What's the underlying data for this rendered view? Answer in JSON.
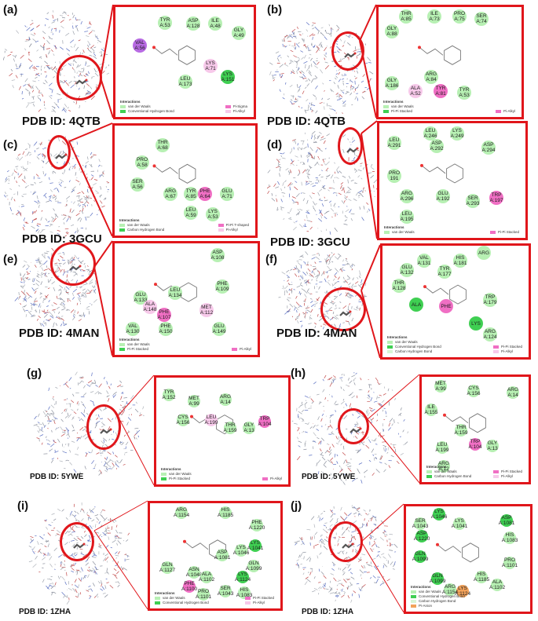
{
  "panels": [
    {
      "letter": "(a)",
      "pdb": "PDB ID: 4QTB",
      "residues": [
        {
          "n": "TYR",
          "id": "A:53",
          "c": "green"
        },
        {
          "n": "ASP",
          "id": "A:128",
          "c": "green"
        },
        {
          "n": "ILE",
          "id": "A:48",
          "c": "green"
        },
        {
          "n": "GLY",
          "id": "A:49",
          "c": "green"
        },
        {
          "n": "VAL",
          "id": "A:56",
          "c": "purple"
        },
        {
          "n": "LYS",
          "id": "A:151",
          "c": "strong"
        },
        {
          "n": "LYS",
          "id": "A:71",
          "c": "lpink"
        },
        {
          "n": "LEU",
          "id": "A:173",
          "c": "green"
        }
      ],
      "legend_title": "Interactions",
      "legend": [
        "van der Waals",
        "Conventional Hydrogen Bond"
      ],
      "legend_right": [
        "Pi-Sigma",
        "Pi-Alkyl"
      ]
    },
    {
      "letter": "(b)",
      "pdb": "PDB ID: 4QTB",
      "residues": [
        {
          "n": "THR",
          "id": "A:85",
          "c": "green"
        },
        {
          "n": "ILE",
          "id": "A:73",
          "c": "green"
        },
        {
          "n": "PRO",
          "id": "A:75",
          "c": "green"
        },
        {
          "n": "SER",
          "id": "A:74",
          "c": "green"
        },
        {
          "n": "GLY",
          "id": "A:88",
          "c": "green"
        },
        {
          "n": "GLY",
          "id": "A:186",
          "c": "green"
        },
        {
          "n": "ARG",
          "id": "A:84",
          "c": "green"
        },
        {
          "n": "ALA",
          "id": "A:52",
          "c": "lpink"
        },
        {
          "n": "TYR",
          "id": "A:81",
          "c": "pink"
        },
        {
          "n": "TYR",
          "id": "A:53",
          "c": "green"
        }
      ],
      "legend_title": "Interactions",
      "legend": [
        "van der Waals",
        "Pi-Pi Stacked"
      ],
      "legend_right": [
        "Pi-Alkyl"
      ]
    },
    {
      "letter": "(c)",
      "pdb": "PDB ID: 3GCU",
      "residues": [
        {
          "n": "THR",
          "id": "A:68",
          "c": "green"
        },
        {
          "n": "PRO",
          "id": "A:58",
          "c": "green"
        },
        {
          "n": "SER",
          "id": "A:56",
          "c": "green"
        },
        {
          "n": "ARG",
          "id": "A:67",
          "c": "green"
        },
        {
          "n": "TYR",
          "id": "A:85",
          "c": "green"
        },
        {
          "n": "PHE",
          "id": "A:64",
          "c": "pink"
        },
        {
          "n": "GLU",
          "id": "A:71",
          "c": "green"
        },
        {
          "n": "LEU",
          "id": "A:59",
          "c": "green"
        },
        {
          "n": "LYS",
          "id": "A:53",
          "c": "green"
        }
      ],
      "legend_title": "Interactions",
      "legend": [
        "van der Waals",
        "Carbon Hydrogen Bond"
      ],
      "legend_right": [
        "Pi-Pi T-shaped",
        "Pi-Alkyl"
      ]
    },
    {
      "letter": "(d)",
      "pdb": "PDB ID: 3GCU",
      "residues": [
        {
          "n": "LEU",
          "id": "A:246",
          "c": "green"
        },
        {
          "n": "LYS",
          "id": "A:249",
          "c": "green"
        },
        {
          "n": "LEU",
          "id": "A:291",
          "c": "green"
        },
        {
          "n": "ASP",
          "id": "A:292",
          "c": "green"
        },
        {
          "n": "ASP",
          "id": "A:294",
          "c": "green"
        },
        {
          "n": "PRO",
          "id": "191",
          "c": "green"
        },
        {
          "n": "ARG",
          "id": "A:296",
          "c": "green"
        },
        {
          "n": "GLU",
          "id": "A:192",
          "c": "green"
        },
        {
          "n": "SER",
          "id": "A:293",
          "c": "green"
        },
        {
          "n": "TRP",
          "id": "A:197",
          "c": "pink"
        },
        {
          "n": "LEU",
          "id": "A:195",
          "c": "green"
        }
      ],
      "legend_title": "Interactions",
      "legend": [
        "van der Waals"
      ],
      "legend_right": [
        "Pi-Pi Stacked"
      ]
    },
    {
      "letter": "(e)",
      "pdb": "PDB ID: 4MAN",
      "residues": [
        {
          "n": "ASP",
          "id": "A:108",
          "c": "green"
        },
        {
          "n": "PHE",
          "id": "A:109",
          "c": "green"
        },
        {
          "n": "GLU",
          "id": "A:133",
          "c": "green"
        },
        {
          "n": "LEU",
          "id": "A:134",
          "c": "green"
        },
        {
          "n": "ALA",
          "id": "A:148",
          "c": "lpink"
        },
        {
          "n": "PHE",
          "id": "A:107",
          "c": "pink"
        },
        {
          "n": "MET",
          "id": "A:112",
          "c": "lpink"
        },
        {
          "n": "VAL",
          "id": "A:130",
          "c": "green"
        },
        {
          "n": "PHE",
          "id": "A:150",
          "c": "green"
        },
        {
          "n": "GLU",
          "id": "A:149",
          "c": "green"
        }
      ],
      "legend_title": "Interactions",
      "legend": [
        "van der Waals",
        "Pi-Pi Stacked"
      ],
      "legend_right": [
        "Pi-Alkyl"
      ]
    },
    {
      "letter": "(f)",
      "pdb": "PDB ID: 4MAN",
      "residues": [
        {
          "n": "ARG",
          "id": "",
          "c": "green"
        },
        {
          "n": "VAL",
          "id": "A:131",
          "c": "green"
        },
        {
          "n": "HIS",
          "id": "A:181",
          "c": "green"
        },
        {
          "n": "GLU",
          "id": "A:132",
          "c": "green"
        },
        {
          "n": "TYR",
          "id": "A:177",
          "c": "green"
        },
        {
          "n": "THR",
          "id": "A:128",
          "c": "green"
        },
        {
          "n": "ALA",
          "id": "",
          "c": "strong"
        },
        {
          "n": "PHE",
          "id": "",
          "c": "pink"
        },
        {
          "n": "TRP",
          "id": "A:179",
          "c": "green"
        },
        {
          "n": "LYS",
          "id": "",
          "c": "strong"
        },
        {
          "n": "ARG",
          "id": "A:124",
          "c": "green"
        }
      ],
      "legend_title": "Interactions",
      "legend": [
        "van der Waals",
        "Conventional Hydrogen Bond",
        "Carbon Hydrogen Bond"
      ],
      "legend_right": [
        "Pi-Pi Stacked",
        "Pi-Alkyl"
      ]
    },
    {
      "letter": "(g)",
      "pdb": "PDB ID: 5YWE",
      "residues": [
        {
          "n": "TYR",
          "id": "A:152",
          "c": "green"
        },
        {
          "n": "MET",
          "id": "A:99",
          "c": "green"
        },
        {
          "n": "ARG",
          "id": "A:14",
          "c": "green"
        },
        {
          "n": "CYS",
          "id": "A:156",
          "c": "green"
        },
        {
          "n": "LEU",
          "id": "A:199",
          "c": "lpink"
        },
        {
          "n": "THR",
          "id": "A:159",
          "c": "green"
        },
        {
          "n": "GLY",
          "id": "A:13",
          "c": "green"
        },
        {
          "n": "TRP",
          "id": "A:104",
          "c": "pink"
        }
      ],
      "legend_title": "Interactions",
      "legend": [
        "van der Waals",
        "Pi-Pi Stacked"
      ],
      "legend_right": [
        "Pi-Alkyl"
      ]
    },
    {
      "letter": "(h)",
      "pdb": "PDB ID: 5YWE",
      "residues": [
        {
          "n": "MET",
          "id": "A:99",
          "c": "green"
        },
        {
          "n": "CYS",
          "id": "A:156",
          "c": "green"
        },
        {
          "n": "ARG",
          "id": "A:14",
          "c": "green"
        },
        {
          "n": "ILE",
          "id": "A:155",
          "c": "green"
        },
        {
          "n": "THR",
          "id": "A:159",
          "c": "green"
        },
        {
          "n": "LEU",
          "id": "A:199",
          "c": "green"
        },
        {
          "n": "TRP",
          "id": "A:104",
          "c": "pink"
        },
        {
          "n": "GLY",
          "id": "A:13",
          "c": "green"
        },
        {
          "n": "ARG",
          "id": "A:12",
          "c": "green"
        }
      ],
      "legend_title": "Interactions",
      "legend": [
        "van der Waals",
        "Carbon Hydrogen Bond"
      ],
      "legend_right": [
        "Pi-Pi Stacked",
        "Pi-Alkyl"
      ]
    },
    {
      "letter": "(i)",
      "pdb": "PDB ID: 1ZHA",
      "residues": [
        {
          "n": "ARG",
          "id": "A:1154",
          "c": "green"
        },
        {
          "n": "HIS",
          "id": "A:1185",
          "c": "green"
        },
        {
          "n": "PHE",
          "id": "A:1220",
          "c": "green"
        },
        {
          "n": "LYS",
          "id": "A:1041",
          "c": "strong"
        },
        {
          "n": "LYS",
          "id": "A:1046",
          "c": "green"
        },
        {
          "n": "ASP",
          "id": "A:1081",
          "c": "green"
        },
        {
          "n": "GLN",
          "id": "A:1099",
          "c": "green"
        },
        {
          "n": "GLN",
          "id": "A:1127",
          "c": "green"
        },
        {
          "n": "ASN",
          "id": "A:1048",
          "c": "green"
        },
        {
          "n": "ALA",
          "id": "A:1102",
          "c": "green"
        },
        {
          "n": "LYS",
          "id": "A:1124",
          "c": "strong"
        },
        {
          "n": "PHE",
          "id": "A:1100",
          "c": "pink"
        },
        {
          "n": "SER",
          "id": "A:1043",
          "c": "green"
        },
        {
          "n": "HIS",
          "id": "A:1083",
          "c": "green"
        },
        {
          "n": "PRO",
          "id": "A:1101",
          "c": "green"
        }
      ],
      "legend_title": "Interactions",
      "legend": [
        "van der Waals",
        "Conventional Hydrogen Bond"
      ],
      "legend_right": [
        "Pi-Pi Stacked",
        "Pi-Alkyl"
      ]
    },
    {
      "letter": "(j)",
      "pdb": "PDB ID: 1ZHA",
      "residues": [
        {
          "n": "LYS",
          "id": "A:1046",
          "c": "strong"
        },
        {
          "n": "SER",
          "id": "A:1043",
          "c": "green"
        },
        {
          "n": "LYS",
          "id": "A:1041",
          "c": "green"
        },
        {
          "n": "ASP",
          "id": "A:1081",
          "c": "strong"
        },
        {
          "n": "ASP",
          "id": "A:1220",
          "c": "strong"
        },
        {
          "n": "HIS",
          "id": "A:1083",
          "c": "green"
        },
        {
          "n": "GLN",
          "id": "A:1099",
          "c": "strong"
        },
        {
          "n": "GLN",
          "id": "A:1099",
          "c": "strong"
        },
        {
          "n": "PRO",
          "id": "A:1101",
          "c": "green"
        },
        {
          "n": "HIS",
          "id": "A:1185",
          "c": "green"
        },
        {
          "n": "LYS",
          "id": "A:1124",
          "c": "orange"
        },
        {
          "n": "ALA",
          "id": "A:1102",
          "c": "green"
        },
        {
          "n": "ARG",
          "id": "A:1154",
          "c": "green"
        }
      ],
      "legend_title": "Interactions",
      "legend": [
        "van der Waals",
        "Conventional Hydrogen Bond",
        "Carbon Hydrogen Bond",
        "Pi-Anion"
      ],
      "legend_right": []
    }
  ],
  "colors": {
    "frame": "#e0161b",
    "vdw": "#b7f0b3",
    "hbond": "#3fcf52",
    "pistack": "#f06fc4",
    "pialkyl": "#f7c9ea",
    "pisigma": "#b76ae2",
    "anion": "#f3a25a"
  }
}
